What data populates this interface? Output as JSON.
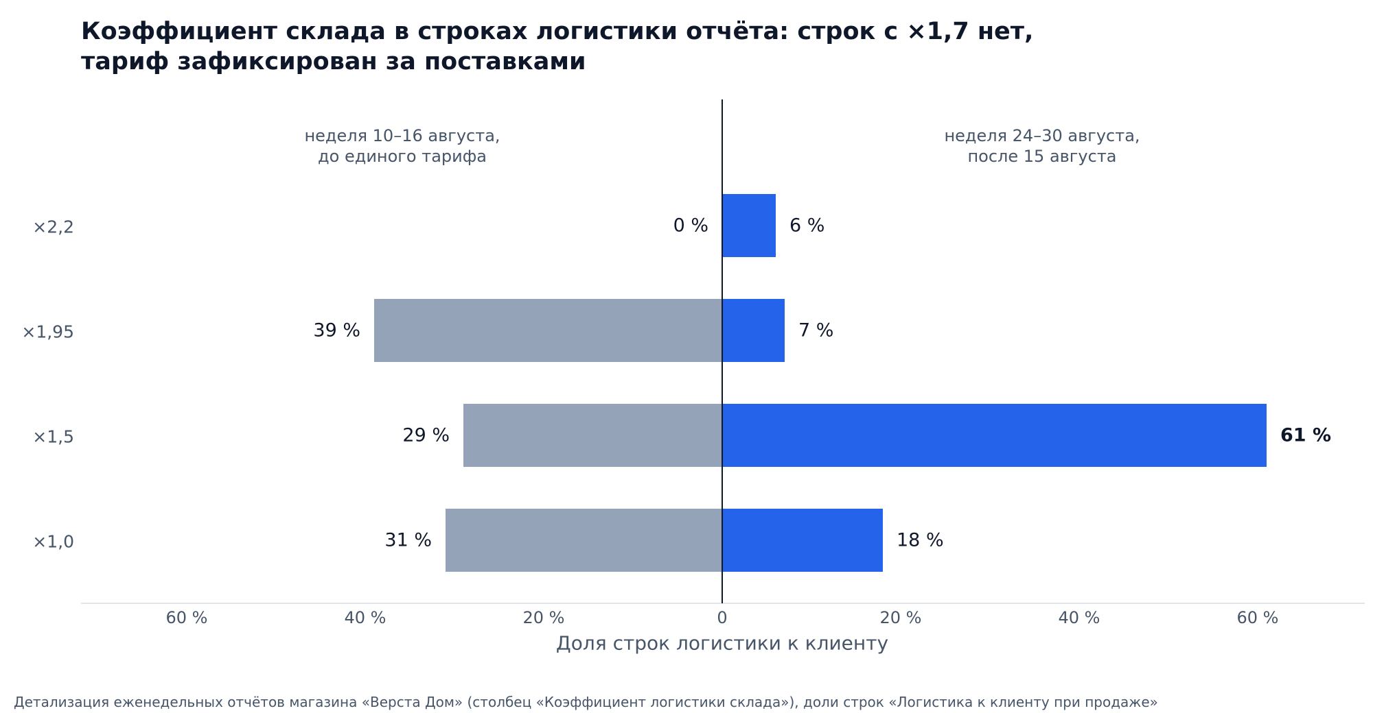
{
  "chart_data": {
    "type": "bar",
    "orientation": "horizontal-diverging",
    "title_lines": [
      "Коэффициент склада в строках логистики отчёта: строк с ×1,7 нет,",
      "тариф зафиксирован за поставками"
    ],
    "categories": [
      "×2,2",
      "×1,95",
      "×1,5",
      "×1,0"
    ],
    "series": [
      {
        "name": "неделя 10–16 августа,\nдо единого тарифа",
        "side": "left",
        "color": "#94a3b8",
        "values": [
          0,
          39,
          29,
          31
        ],
        "labels": [
          "0 %",
          "39 %",
          "29 %",
          "31 %"
        ]
      },
      {
        "name": "неделя 24–30 августа,\nпосле 15 августа",
        "side": "right",
        "color": "#2563eb",
        "values": [
          6,
          7,
          61,
          18
        ],
        "labels": [
          "6 %",
          "7 %",
          "61 %",
          "18 %"
        ]
      }
    ],
    "highlight_label": {
      "series": 1,
      "index": 2
    },
    "xlim": [
      -72,
      72
    ],
    "xticks": [
      -60,
      -40,
      -20,
      0,
      20,
      40,
      60
    ],
    "xtick_labels": [
      "60 %",
      "40 %",
      "20 %",
      "0",
      "20 %",
      "40 %",
      "60 %"
    ],
    "xlabel": "Доля строк логистики к клиенту",
    "source": "Детализация еженедельных отчётов магазина «Верста Дом» (столбец «Коэффициент логистики склада»), доли строк «Логистика к клиенту при продаже»"
  }
}
